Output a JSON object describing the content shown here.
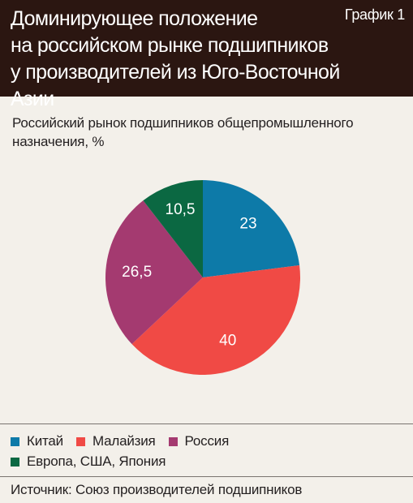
{
  "header": {
    "title_lines": [
      "Доминирующее положение",
      "на российском рынке подшипников",
      "у производителей из Юго-Восточной Азии"
    ],
    "figure_label": "График 1"
  },
  "chart_data": {
    "type": "pie",
    "title": "Российский рынок подшипников общепромышленного назначения, %",
    "slices": [
      {
        "name": "Китай",
        "value": 23,
        "label": "23",
        "color": "#0d7aa8"
      },
      {
        "name": "Малайзия",
        "value": 40,
        "label": "40",
        "color": "#f04a45"
      },
      {
        "name": "Россия",
        "value": 26.5,
        "label": "26,5",
        "color": "#a43a70"
      },
      {
        "name": "Европа, США, Япония",
        "value": 10.5,
        "label": "10,5",
        "color": "#0b6842"
      }
    ],
    "start": "12 o'clock",
    "direction": "clockwise"
  },
  "source": "Источник: Союз производителей подшипников"
}
